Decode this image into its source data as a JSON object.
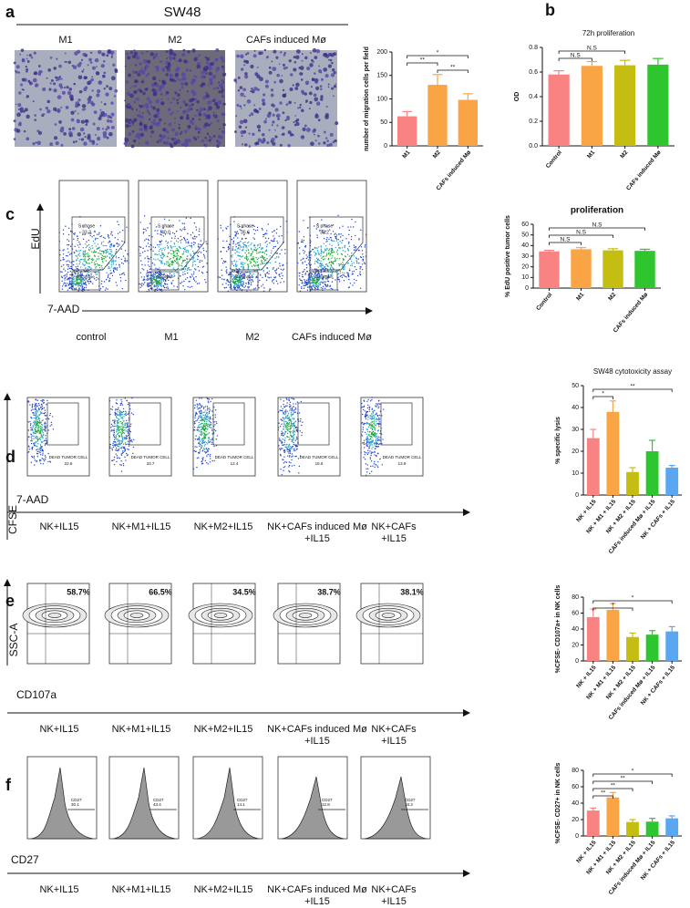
{
  "panels": {
    "a": {
      "label": "a",
      "group": "SW48",
      "captions": [
        [
          "M1"
        ],
        [
          "M2"
        ],
        [
          "CAFs induced Mø"
        ]
      ]
    },
    "b": {
      "label": "b"
    },
    "c": {
      "label": "c",
      "y_axis": "EdU",
      "x_axis": "7-AAD",
      "gates": [
        "S phase",
        "G1 phase"
      ],
      "gate_values": [
        "33.3",
        "40.0",
        "35.6",
        "33.2"
      ],
      "captions": [
        [
          "control"
        ],
        [
          "M1"
        ],
        [
          "M2"
        ],
        [
          "CAFs induced Mø"
        ]
      ]
    },
    "d": {
      "label": "d",
      "y_axis": "CFSE",
      "x_axis": "7-AAD",
      "gate": "DEAD TUMOR CELL",
      "gate_values": [
        "22.6",
        "33.7",
        "12.4",
        "15.6",
        "13.9"
      ],
      "captions": [
        [
          "NK+IL15"
        ],
        [
          "NK+M1+IL15"
        ],
        [
          "NK+M2+IL15"
        ],
        [
          "NK+CAFs induced Mø",
          "+IL15"
        ],
        [
          "NK+CAFs",
          "+IL15"
        ]
      ]
    },
    "e": {
      "label": "e",
      "y_axis": "SSC-A",
      "x_axis": "CD107a",
      "gate_values": [
        "58.7%",
        "66.5%",
        "34.5%",
        "38.7%",
        "38.1%"
      ],
      "captions": [
        [
          "NK+IL15"
        ],
        [
          "NK+M1+IL15"
        ],
        [
          "NK+M2+IL15"
        ],
        [
          "NK+CAFs induced Mø",
          "+IL15"
        ],
        [
          "NK+CAFs",
          "+IL15"
        ]
      ]
    },
    "f": {
      "label": "f",
      "x_axis": "CD27",
      "gate": "CD27",
      "gate_values": [
        "30.1",
        "43.4",
        "14.1",
        "12.8",
        "18.3"
      ],
      "captions": [
        [
          "NK+IL15"
        ],
        [
          "NK+M1+IL15"
        ],
        [
          "NK+M2+IL15"
        ],
        [
          "NK+CAFs induced Mø",
          "+IL15"
        ],
        [
          "NK+CAFs",
          "+IL15"
        ]
      ]
    }
  },
  "chart_data": [
    {
      "type": "bar",
      "y_label": "number of migration cells per field",
      "categories": [
        "M1",
        "M2",
        "CAFs induced Mø"
      ],
      "values": [
        63,
        130,
        98
      ],
      "errors": [
        10,
        22,
        13
      ],
      "colors": [
        "#f98383",
        "#f9a445",
        "#f9a445"
      ],
      "ylim": [
        0,
        200
      ],
      "yticks": [
        0,
        50,
        100,
        150,
        200
      ],
      "annotations": [
        {
          "text": "*",
          "between": [
            "M1",
            "CAFs induced Mø"
          ]
        },
        {
          "text": "**",
          "between": [
            "M1",
            "M2"
          ]
        },
        {
          "text": "**",
          "between": [
            "M2",
            "CAFs induced Mø"
          ]
        }
      ]
    },
    {
      "type": "bar",
      "title": "72h proliferation",
      "y_label": "OD",
      "categories": [
        "Control",
        "M1",
        "M2",
        "CAFs induced Mø"
      ],
      "values": [
        0.58,
        0.65,
        0.655,
        0.66
      ],
      "errors": [
        0.03,
        0.035,
        0.04,
        0.05
      ],
      "colors": [
        "#f98383",
        "#f9a445",
        "#c4be12",
        "#2ec52e"
      ],
      "ylim": [
        0,
        0.8
      ],
      "yticks": [
        {
          "value": 0,
          "label": "0.0"
        },
        {
          "value": 0.2,
          "label": "0.2"
        },
        {
          "value": 0.4,
          "label": "0.4"
        },
        {
          "value": 0.6,
          "label": "0.6"
        },
        {
          "value": 0.8,
          "label": "0.8"
        }
      ],
      "annotations": [
        {
          "text": "N.S",
          "between": [
            "Control",
            "M2"
          ]
        },
        {
          "text": "N.S",
          "between": [
            "Control",
            "M1"
          ]
        }
      ]
    },
    {
      "type": "bar",
      "title": "proliferation",
      "y_label": "% EdU positive tumor cells",
      "categories": [
        "Control",
        "M1",
        "M2",
        "CAFs induced Mø"
      ],
      "values": [
        34.5,
        36.5,
        35.5,
        35
      ],
      "errors": [
        1,
        1.5,
        1.5,
        1.5
      ],
      "colors": [
        "#f98383",
        "#f9a445",
        "#c4be12",
        "#2ec52e"
      ],
      "ylim": [
        0,
        60
      ],
      "yticks": [
        0,
        10,
        20,
        30,
        40,
        50,
        60
      ],
      "annotations": [
        {
          "text": "N.S",
          "between": [
            "Control",
            "CAFs induced Mø"
          ]
        },
        {
          "text": "N.S",
          "between": [
            "Control",
            "M2"
          ]
        },
        {
          "text": "N.S",
          "between": [
            "Control",
            "M1"
          ]
        }
      ]
    },
    {
      "type": "bar",
      "title": "SW48 cytotoxicity assay",
      "y_label": "% specific lysis",
      "categories": [
        "NK + IL15",
        "NK + M1 + IL15",
        "NK + M2 + IL15",
        "CAFs induced Mø + IL15",
        "NK + CAFs + IL15"
      ],
      "values": [
        26,
        38,
        10.5,
        20,
        12.5
      ],
      "errors": [
        4,
        5,
        2,
        5,
        1
      ],
      "colors": [
        "#f98383",
        "#f9a445",
        "#c4be12",
        "#2ec52e",
        "#5aa6f0"
      ],
      "ylim": [
        0,
        50
      ],
      "yticks": [
        0,
        10,
        20,
        30,
        40,
        50
      ],
      "annotations": [
        {
          "text": "**",
          "between": [
            "NK + IL15",
            "NK + CAFs + IL15"
          ]
        },
        {
          "text": "*",
          "between": [
            "NK + IL15",
            "NK + M1 + IL15"
          ]
        }
      ]
    },
    {
      "type": "bar",
      "y_label": "%CFSE- CD107a+ in NK cells",
      "categories": [
        "NK + IL15",
        "NK + M1 + IL15",
        "NK + M2 + IL15",
        "CAFs induced Mø + IL15",
        "NK + CAFs + IL15"
      ],
      "values": [
        55,
        64,
        30,
        33,
        37
      ],
      "errors": [
        10,
        8,
        5,
        5,
        6
      ],
      "colors": [
        "#f98383",
        "#f9a445",
        "#c4be12",
        "#2ec52e",
        "#5aa6f0"
      ],
      "ylim": [
        0,
        80
      ],
      "yticks": [
        0,
        20,
        40,
        60,
        80
      ],
      "annotations": [
        {
          "text": "*",
          "between": [
            "NK + IL15",
            "NK + CAFs + IL15"
          ]
        },
        {
          "text": "*",
          "between": [
            "NK + IL15",
            "NK + M2 + IL15"
          ]
        }
      ]
    },
    {
      "type": "bar",
      "y_label": "%CFSE- CD27+ in NK cells",
      "categories": [
        "NK + IL15",
        "NK + M1 + IL15",
        "NK + M2 + IL15",
        "CAFs induced Mø + IL15",
        "NK + CAFs + IL15"
      ],
      "values": [
        31,
        47,
        17,
        17.5,
        21.5
      ],
      "errors": [
        3,
        6,
        3,
        4,
        3
      ],
      "colors": [
        "#f98383",
        "#f9a445",
        "#c4be12",
        "#2ec52e",
        "#5aa6f0"
      ],
      "ylim": [
        0,
        80
      ],
      "yticks": [
        0,
        20,
        40,
        60,
        80
      ],
      "annotations": [
        {
          "text": "*",
          "between": [
            "NK + IL15",
            "NK + CAFs + IL15"
          ]
        },
        {
          "text": "**",
          "between": [
            "NK + IL15",
            "CAFs induced Mø + IL15"
          ]
        },
        {
          "text": "**",
          "between": [
            "NK + IL15",
            "NK + M2 + IL15"
          ]
        },
        {
          "text": "**",
          "between": [
            "NK + IL15",
            "NK + M1 + IL15"
          ]
        }
      ]
    }
  ]
}
